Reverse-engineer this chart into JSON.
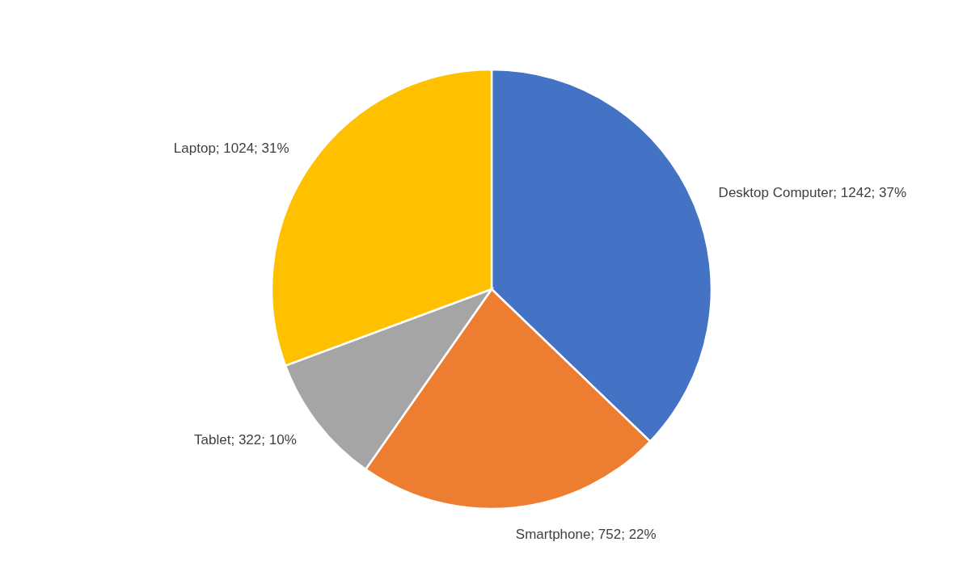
{
  "chart_data": {
    "type": "pie",
    "categories": [
      "Desktop Computer",
      "Smartphone",
      "Tablet",
      "Laptop"
    ],
    "values": [
      1242,
      752,
      322,
      1024
    ],
    "colors": [
      "#4472c4",
      "#ed7d31",
      "#a5a5a5",
      "#ffc000"
    ],
    "value_labels": [
      "1242; 37%",
      "752; 22%",
      "322; 10%",
      "1024; 31%"
    ]
  }
}
